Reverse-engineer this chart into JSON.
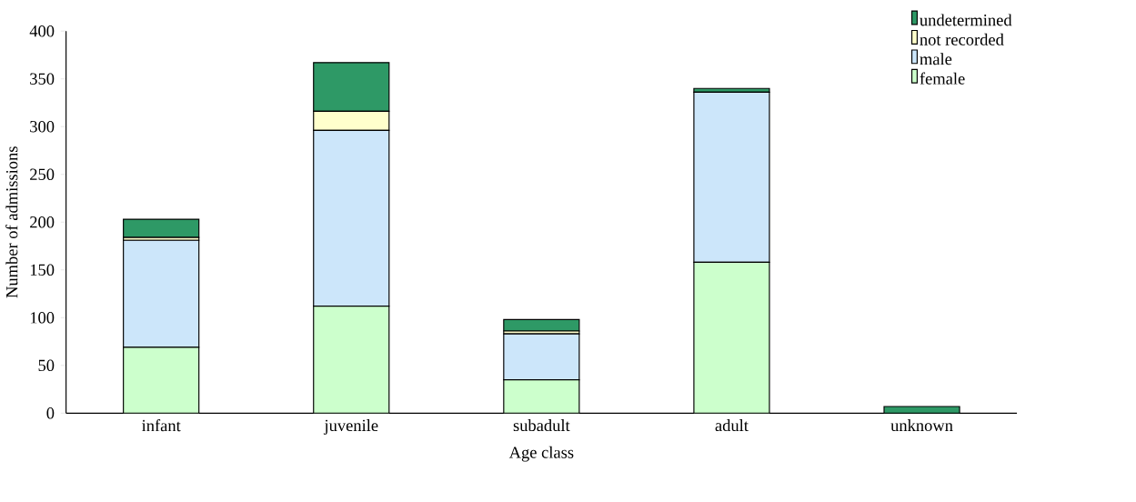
{
  "chart_data": {
    "type": "bar",
    "stacked": true,
    "xlabel": "Age class",
    "ylabel": "Number of admissions",
    "categories": [
      "infant",
      "juvenile",
      "subadult",
      "adult",
      "unknown"
    ],
    "series": [
      {
        "name": "female",
        "color": "#ccffcc",
        "values": [
          69,
          112,
          35,
          158,
          0
        ]
      },
      {
        "name": "male",
        "color": "#cce6fa",
        "values": [
          112,
          184,
          48,
          178,
          null
        ]
      },
      {
        "name": "not recorded",
        "color": "#ffffcc",
        "values": [
          3,
          20,
          3,
          0,
          0
        ]
      },
      {
        "name": "undetermined",
        "color": "#2e9966",
        "values": [
          19,
          51,
          12,
          4,
          7
        ]
      }
    ],
    "ylim": [
      0,
      400
    ],
    "yticks": [
      0,
      50,
      100,
      150,
      200,
      250,
      300,
      350,
      400
    ],
    "legend": "top right"
  }
}
